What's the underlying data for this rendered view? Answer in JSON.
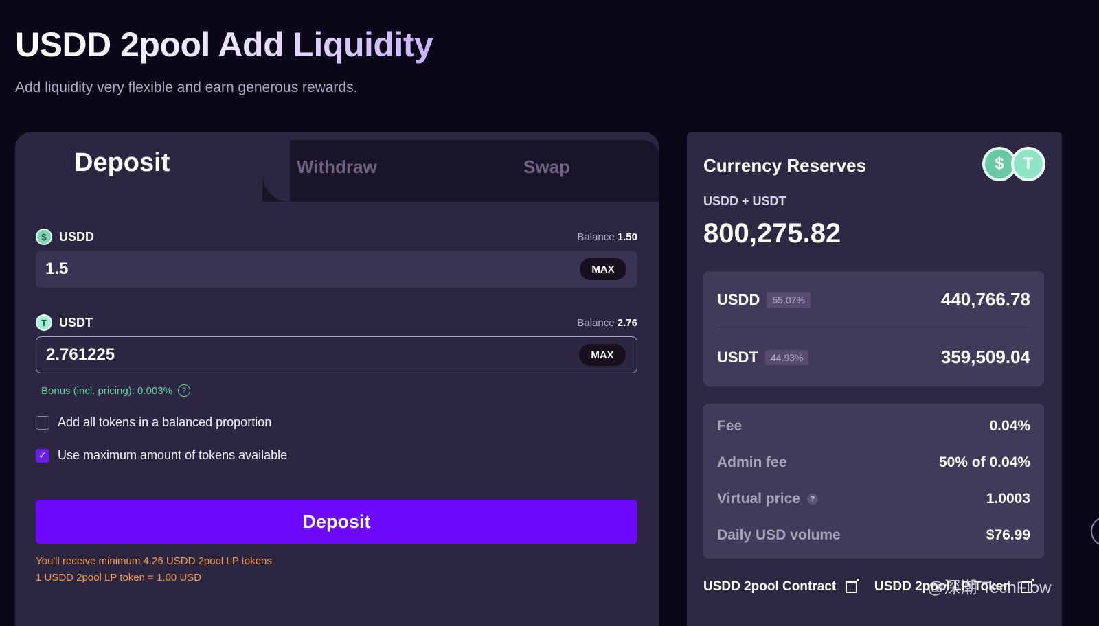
{
  "header": {
    "title": "USDD 2pool Add Liquidity",
    "subtitle": "Add liquidity very flexible and earn generous rewards."
  },
  "tabs": [
    {
      "label": "Deposit",
      "active": true
    },
    {
      "label": "Withdraw",
      "active": false
    },
    {
      "label": "Swap",
      "active": false
    }
  ],
  "deposit_form": {
    "usdd": {
      "label": "USDD",
      "icon": "usdd-coin-icon",
      "balance_label": "Balance",
      "balance_value": "1.50",
      "input_value": "1.5",
      "max_label": "MAX"
    },
    "usdt": {
      "label": "USDT",
      "icon": "usdt-coin-icon",
      "balance_label": "Balance",
      "balance_value": "2.76",
      "input_value": "2.761225",
      "max_label": "MAX"
    },
    "bonus_text": "Bonus (incl. pricing): 0.003%",
    "balanced_label": "Add all tokens in a balanced proportion",
    "balanced_checked": false,
    "use_max_label": "Use maximum amount of tokens available",
    "use_max_checked": true,
    "submit_label": "Deposit",
    "receive_min": "You'll receive minimum 4.26 USDD 2pool LP tokens",
    "lp_rate": "1 USDD 2pool LP token = 1.00 USD"
  },
  "reserves": {
    "title": "Currency Reserves",
    "pair": "USDD + USDT",
    "total": "800,275.82",
    "coins": [
      {
        "symbol": "USDD",
        "pct": "55.07%",
        "amount": "440,766.78"
      },
      {
        "symbol": "USDT",
        "pct": "44.93%",
        "amount": "359,509.04"
      }
    ]
  },
  "stats": {
    "fee_label": "Fee",
    "fee_value": "0.04%",
    "admin_fee_label": "Admin fee",
    "admin_fee_value": "50% of 0.04%",
    "virtual_price_label": "Virtual price",
    "virtual_price_value": "1.0003",
    "daily_volume_label": "Daily USD volume",
    "daily_volume_value": "$76.99"
  },
  "links": {
    "contract": "USDD 2pool Contract",
    "lp_token": "USDD 2pool LP Token"
  },
  "watermark": "@深潮 TechFlow",
  "colors": {
    "background": "#0c0718",
    "panel": "#2d2640",
    "accent_purple": "#6d0afc",
    "bonus_green": "#5fd2a5",
    "note_orange": "#f29a4c"
  }
}
